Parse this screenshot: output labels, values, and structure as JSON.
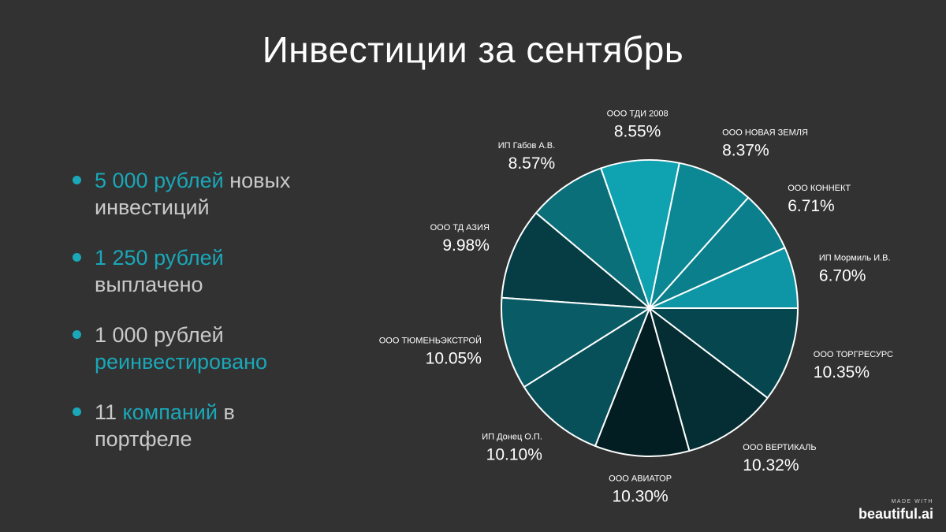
{
  "title": "Инвестиции за сентябрь",
  "bullets": [
    {
      "parts": [
        {
          "text": "5 000 рублей",
          "accent": true
        },
        {
          "text": " новых инвестиций",
          "accent": false
        }
      ]
    },
    {
      "parts": [
        {
          "text": "1 250 рублей",
          "accent": true
        },
        {
          "text": " выплачено",
          "accent": false
        }
      ]
    },
    {
      "parts": [
        {
          "text": "1 000 рублей ",
          "accent": false
        },
        {
          "text": "реинвестировано",
          "accent": true
        }
      ]
    },
    {
      "parts": [
        {
          "text": "11 ",
          "accent": false
        },
        {
          "text": "компаний",
          "accent": true
        },
        {
          "text": " в портфеле",
          "accent": false
        }
      ]
    }
  ],
  "colors": {
    "accent": "#1aa7b8",
    "background": "#323232"
  },
  "chart_data": {
    "type": "pie",
    "slices": [
      {
        "name": "ИП Мормиль И.В.",
        "value": 6.7,
        "label": "6.70%",
        "color": "#0f96a6"
      },
      {
        "name": "ООО КОННЕКТ",
        "value": 6.71,
        "label": "6.71%",
        "color": "#0b7f8b"
      },
      {
        "name": "ООО НОВАЯ ЗЕМЛЯ",
        "value": 8.37,
        "label": "8.37%",
        "color": "#0c8894"
      },
      {
        "name": "ООО ТДИ 2008",
        "value": 8.55,
        "label": "8.55%",
        "color": "#0fa2b1"
      },
      {
        "name": "ИП Габов А.В.",
        "value": 8.57,
        "label": "8.57%",
        "color": "#0b6f79"
      },
      {
        "name": "ООО ТД АЗИЯ",
        "value": 9.98,
        "label": "9.98%",
        "color": "#063c44"
      },
      {
        "name": "ООО ТЮМЕНЬЭКСТРОЙ",
        "value": 10.05,
        "label": "10.05%",
        "color": "#095c66"
      },
      {
        "name": "ИП Донец О.П.",
        "value": 10.1,
        "label": "10.10%",
        "color": "#085059"
      },
      {
        "name": "ООО АВИАТОР",
        "value": 10.3,
        "label": "10.30%",
        "color": "#021e22"
      },
      {
        "name": "ООО ВЕРТИКАЛЬ",
        "value": 10.32,
        "label": "10.32%",
        "color": "#042e33"
      },
      {
        "name": "ООО ТОРГРЕСУРС",
        "value": 10.35,
        "label": "10.35%",
        "color": "#06464e"
      }
    ],
    "start": "3 o'clock",
    "direction": "counterclockwise"
  },
  "branding": {
    "small": "MADE WITH",
    "logo": "beautiful.ai"
  }
}
